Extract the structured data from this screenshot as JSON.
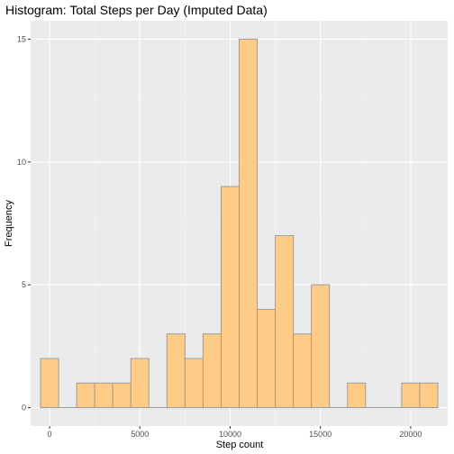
{
  "chart_data": {
    "type": "bar",
    "title": "Histogram: Total Steps per Day (Imputed Data)",
    "xlabel": "Step count",
    "ylabel": "Frequency",
    "bin_width": 1000,
    "bin_centers": [
      0,
      1000,
      2000,
      3000,
      4000,
      5000,
      6000,
      7000,
      8000,
      9000,
      10000,
      11000,
      12000,
      13000,
      14000,
      15000,
      16000,
      17000,
      18000,
      19000,
      20000,
      21000
    ],
    "values": [
      2,
      0,
      1,
      1,
      1,
      2,
      0,
      3,
      2,
      3,
      9,
      15,
      4,
      7,
      3,
      5,
      0,
      1,
      0,
      0,
      1,
      1
    ],
    "xlim": [
      -1050,
      22050
    ],
    "ylim": [
      -0.75,
      15.75
    ],
    "x_ticks": [
      0,
      5000,
      10000,
      15000,
      20000
    ],
    "x_tick_labels": [
      "0",
      "5000",
      "10000",
      "15000",
      "20000"
    ],
    "y_ticks": [
      0,
      5,
      10,
      15
    ],
    "y_tick_labels": [
      "0",
      "5",
      "10",
      "15"
    ],
    "grid": true,
    "colors": {
      "bar_fill": "#FFCC88",
      "bar_stroke": "#9c9c9c",
      "panel_background": "#EBEBEB",
      "grid_major": "#FFFFFF"
    }
  }
}
